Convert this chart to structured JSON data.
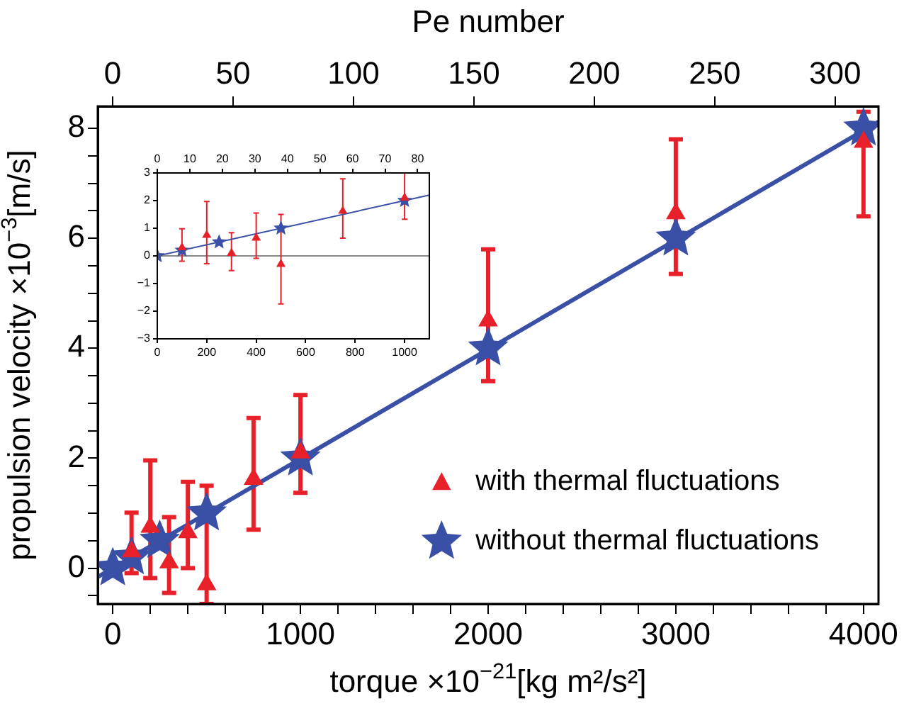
{
  "chart_data": [
    {
      "type": "scatter",
      "xlabel": "torque ×10$^{−21}$[kg m²/s²]",
      "ylabel": "propulsion velocity ×10$^{−3}$[m/s]",
      "x2label": "Pe number",
      "xlim": [
        -80,
        4080
      ],
      "xticks": [
        0,
        {
          "value": 200,
          "label": null
        },
        {
          "value": 400,
          "label": null
        },
        {
          "value": 600,
          "label": null
        },
        {
          "value": 800,
          "label": null
        },
        1000,
        {
          "value": 1200,
          "label": null
        },
        {
          "value": 1400,
          "label": null
        },
        {
          "value": 1600,
          "label": null
        },
        {
          "value": 1800,
          "label": null
        },
        2000,
        {
          "value": 2200,
          "label": null
        },
        {
          "value": 2400,
          "label": null
        },
        {
          "value": 2600,
          "label": null
        },
        {
          "value": 2800,
          "label": null
        },
        3000,
        {
          "value": 3200,
          "label": null
        },
        {
          "value": 3400,
          "label": null
        },
        {
          "value": 3600,
          "label": null
        },
        {
          "value": 3800,
          "label": null
        },
        4000
      ],
      "x2lim": [
        -6.2,
        318
      ],
      "x2ticks": [
        0,
        50,
        100,
        150,
        200,
        250,
        300
      ],
      "ylim": [
        -0.65,
        8.4
      ],
      "yticks": [
        {
          "value": -0.5,
          "label": null
        },
        0,
        {
          "value": 0.5,
          "label": null
        },
        {
          "value": 1,
          "label": null
        },
        {
          "value": 1.5,
          "label": null
        },
        2,
        {
          "value": 2.5,
          "label": null
        },
        {
          "value": 3,
          "label": null
        },
        {
          "value": 3.5,
          "label": null
        },
        4,
        {
          "value": 4.5,
          "label": null
        },
        {
          "value": 5,
          "label": null
        },
        {
          "value": 5.5,
          "label": null
        },
        6,
        {
          "value": 6.5,
          "label": null
        },
        {
          "value": 7,
          "label": null
        },
        {
          "value": 7.5,
          "label": null
        },
        8
      ],
      "grid": false,
      "legend": "bottom right",
      "series": [
        {
          "name": "with thermal fluctuations",
          "type": "scatter",
          "marker": "triangle",
          "color": "#e8202a",
          "x": [
            100,
            200,
            300,
            400,
            500,
            750,
            1000,
            2000,
            3000,
            4000
          ],
          "values": [
            0.3,
            0.75,
            0.1,
            0.65,
            -0.3,
            1.62,
            2.1,
            4.5,
            6.45,
            7.75
          ],
          "errors": [
            [
              -0.09,
              1.01
            ],
            [
              -0.18,
              1.96
            ],
            [
              -0.45,
              0.93
            ],
            [
              0,
              1.57
            ],
            [
              -0.65,
              1.5
            ],
            [
              0.7,
              2.73
            ],
            [
              1.37,
              3.15
            ],
            [
              3.4,
              5.8
            ],
            [
              5.35,
              7.8
            ],
            [
              6.4,
              8.3
            ]
          ]
        },
        {
          "type": "line",
          "marker": "none",
          "color": "#3a4fa6",
          "x": [
            -80,
            4080
          ],
          "values": [
            -0.16,
            8.12
          ]
        },
        {
          "name": "without thermal fluctuations",
          "type": "scatter",
          "marker": "star",
          "color": "#3a4fa6",
          "x": [
            0,
            100,
            250,
            500,
            1000,
            2000,
            3000,
            4000
          ],
          "values": [
            0,
            0.2,
            0.5,
            1,
            2,
            4,
            6,
            8
          ]
        }
      ]
    },
    {
      "type": "scatter",
      "xlim": [
        0,
        1100
      ],
      "xticks": [
        0,
        200,
        400,
        600,
        800,
        1000
      ],
      "x2lim": [
        0,
        83.6
      ],
      "x2ticks": [
        0,
        10,
        20,
        30,
        40,
        50,
        60,
        70,
        80
      ],
      "ylim": [
        -3,
        3
      ],
      "yticks": [
        {
          "value": -3,
          "label": "−3"
        },
        {
          "value": -2,
          "label": "−2"
        },
        {
          "value": -1,
          "label": "−1"
        },
        0,
        1,
        2,
        3
      ],
      "grid": false,
      "ref_lines": [
        {
          "axis": "y",
          "value": 0,
          "color": "#888888"
        }
      ],
      "series": [
        {
          "type": "scatter",
          "marker": "triangle",
          "color": "#e8202a",
          "x": [
            100,
            200,
            300,
            400,
            500,
            750,
            1000
          ],
          "values": [
            0.3,
            0.75,
            0.1,
            0.65,
            -0.3,
            1.62,
            2.1
          ],
          "errors": [
            [
              -0.19,
              0.98
            ],
            [
              -0.28,
              1.97
            ],
            [
              -0.53,
              0.84
            ],
            [
              -0.09,
              1.55
            ],
            [
              -1.74,
              1.5
            ],
            [
              0.64,
              2.79
            ],
            [
              1.33,
              3
            ]
          ]
        },
        {
          "type": "line",
          "marker": "none",
          "color": "#3a4fa6",
          "x": [
            0,
            1100
          ],
          "values": [
            0,
            2.2
          ]
        },
        {
          "type": "scatter",
          "marker": "star",
          "color": "#3a4fa6",
          "x": [
            0,
            100,
            250,
            500,
            1000
          ],
          "values": [
            0,
            0.2,
            0.5,
            1,
            2
          ]
        }
      ]
    }
  ]
}
